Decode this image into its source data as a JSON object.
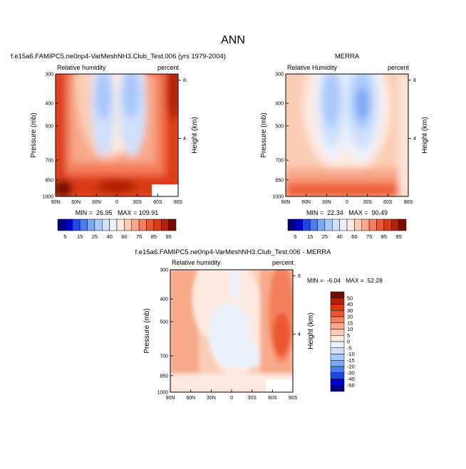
{
  "figure_title": "ANN",
  "chart_data": [
    {
      "type": "heatmap",
      "title": "f.e15a6.FAMIPC5.ne0np4-VarMeshNH3.Club_Test.006 (yrs 1979-2004)",
      "left_label": "Relative humidity",
      "right_label": "percent",
      "xlabel": "",
      "ylabel": "Pressure (mb)",
      "y2label": "Height (km)",
      "x_ticks": [
        "90N",
        "60N",
        "30N",
        "0",
        "30S",
        "60S",
        "90S"
      ],
      "y_ticks": [
        "300",
        "400",
        "500",
        "700",
        "850",
        "1000"
      ],
      "y2_ticks": [
        "8",
        "4"
      ],
      "stats": "MIN =  26.95   MAX = 109.91",
      "colorbar": {
        "orientation": "horizontal",
        "labels": [
          "5",
          "15",
          "25",
          "40",
          "60",
          "75",
          "85",
          "95"
        ],
        "colors": [
          "#00007f",
          "#0000cc",
          "#1f46e6",
          "#4a7ef0",
          "#7ea8f5",
          "#a9c8fa",
          "#cfe0fb",
          "#ebf1fb",
          "#fde9df",
          "#fbcdb5",
          "#f8a98a",
          "#f47f5c",
          "#ec5630",
          "#d93a12",
          "#b02306",
          "#7a0b00"
        ]
      }
    },
    {
      "type": "heatmap",
      "title": "MERRA",
      "left_label": "Relative Humidity",
      "right_label": "percent",
      "xlabel": "",
      "ylabel": "Pressure (mb)",
      "y2label": "Height (km)",
      "x_ticks": [
        "90N",
        "60N",
        "30N",
        "0",
        "30S",
        "60S",
        "90S"
      ],
      "y_ticks": [
        "300",
        "400",
        "500",
        "700",
        "850",
        "1000"
      ],
      "y2_ticks": [
        "8",
        "4"
      ],
      "stats": "MIN =  22.34   MAX =  90.49",
      "colorbar": {
        "orientation": "horizontal",
        "labels": [
          "5",
          "15",
          "25",
          "40",
          "60",
          "75",
          "85",
          "95"
        ],
        "colors": [
          "#00007f",
          "#0000cc",
          "#1f46e6",
          "#4a7ef0",
          "#7ea8f5",
          "#a9c8fa",
          "#cfe0fb",
          "#ebf1fb",
          "#fde9df",
          "#fbcdb5",
          "#f8a98a",
          "#f47f5c",
          "#ec5630",
          "#d93a12",
          "#b02306",
          "#7a0b00"
        ]
      }
    },
    {
      "type": "heatmap",
      "title": "f.e15a6.FAMIPC5.ne0np4-VarMeshNH3.Club_Test.006 - MERRA",
      "left_label": "Relative humidity",
      "right_label": "percent",
      "xlabel": "",
      "ylabel": "Pressure (mb)",
      "y2label": "Height (km)",
      "x_ticks": [
        "90N",
        "60N",
        "30N",
        "0",
        "30S",
        "60S",
        "90S"
      ],
      "y_ticks": [
        "300",
        "400",
        "500",
        "700",
        "850",
        "1000"
      ],
      "y2_ticks": [
        "8",
        "4"
      ],
      "stats": "MIN =  -6.04   MAX =  52.28",
      "colorbar": {
        "orientation": "vertical",
        "labels": [
          "50",
          "40",
          "30",
          "20",
          "15",
          "10",
          "5",
          "0",
          "-5",
          "-10",
          "-15",
          "-20",
          "-30",
          "-40",
          "-50"
        ],
        "colors": [
          "#7a0b00",
          "#b02306",
          "#d93a12",
          "#ec5630",
          "#f47f5c",
          "#f8a98a",
          "#fbcdb5",
          "#fde9df",
          "#ebf1fb",
          "#cfe0fb",
          "#a9c8fa",
          "#7ea8f5",
          "#4a7ef0",
          "#1f46e6",
          "#0000cc",
          "#00007f"
        ]
      }
    }
  ]
}
